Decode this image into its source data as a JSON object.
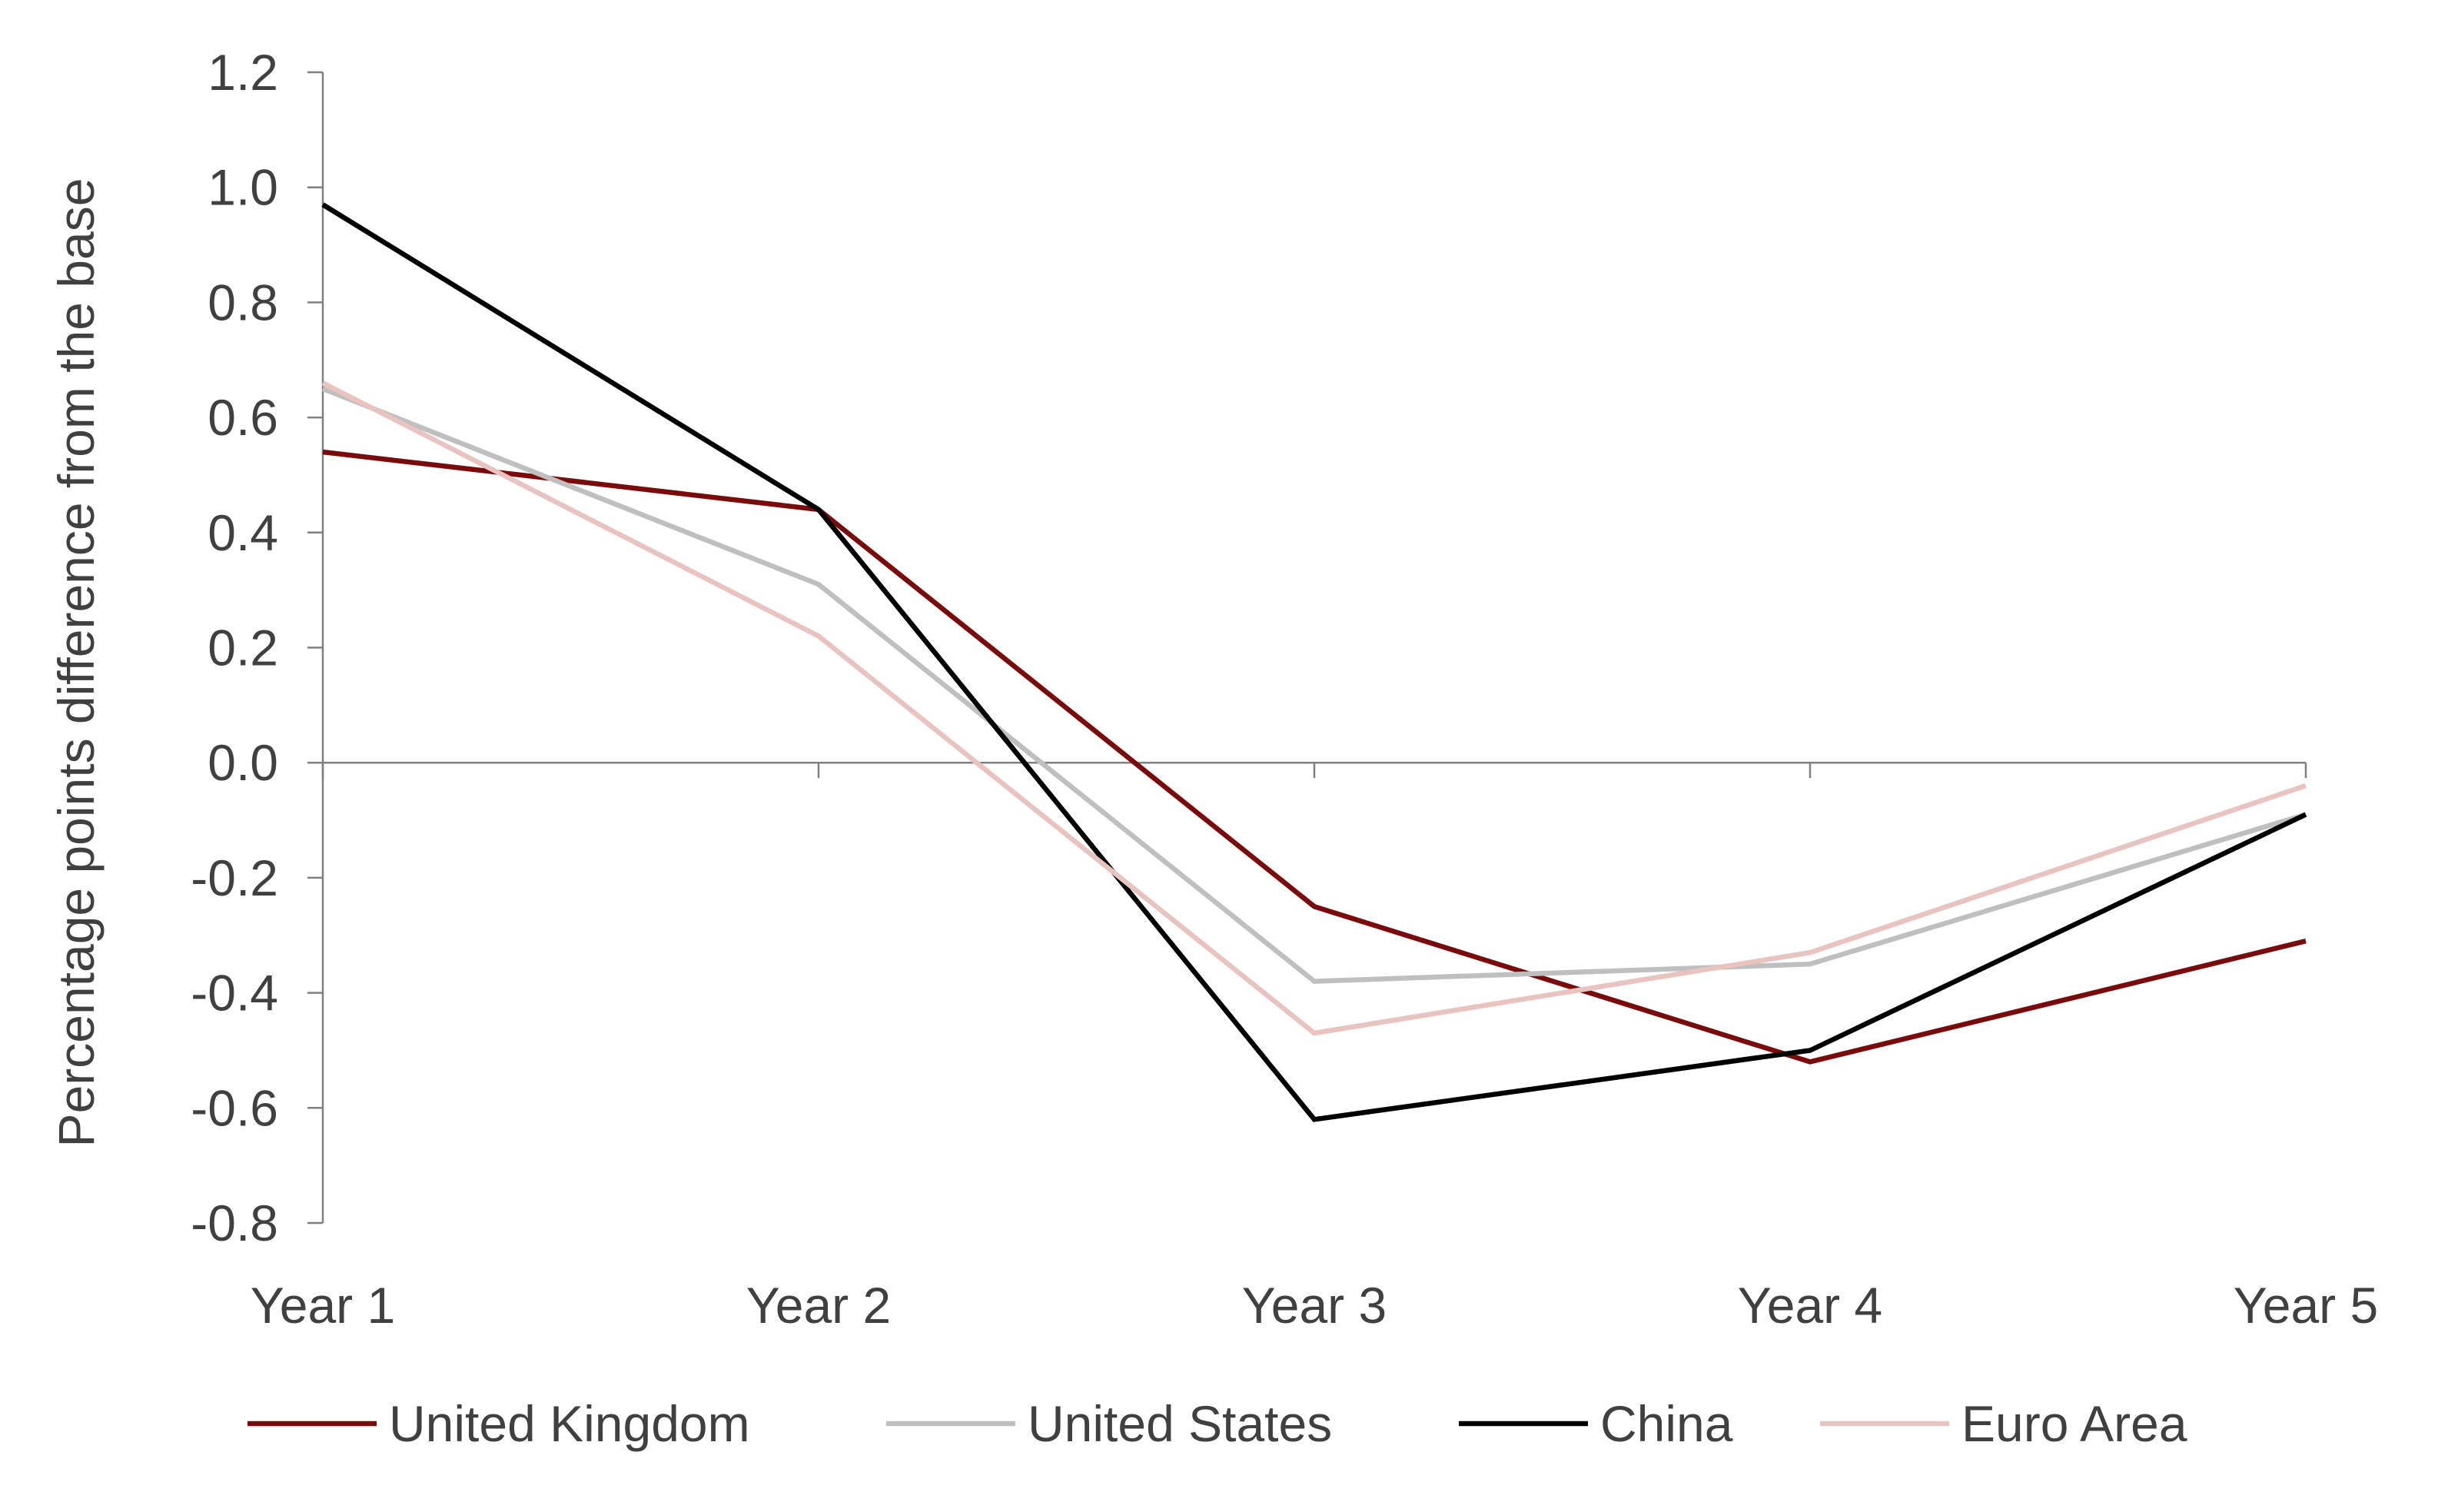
{
  "chart_data": {
    "type": "line",
    "categories": [
      "Year 1",
      "Year 2",
      "Year 3",
      "Year 4",
      "Year 5"
    ],
    "ylabel": "Percentage points difference from the base",
    "xlabel": "",
    "ylim": [
      -0.8,
      1.2
    ],
    "yticks": [
      "1.2",
      "1.0",
      "0.8",
      "0.6",
      "0.4",
      "0.2",
      "0.0",
      "-0.2",
      "-0.4",
      "-0.6",
      "-0.8"
    ],
    "grid": false,
    "legend_position": "bottom",
    "series": [
      {
        "name": "United Kingdom",
        "color": "#7b0a0a",
        "values": [
          0.54,
          0.44,
          -0.25,
          -0.52,
          -0.31
        ]
      },
      {
        "name": "United States",
        "color": "#bfbfbf",
        "values": [
          0.65,
          0.31,
          -0.38,
          -0.35,
          -0.09
        ]
      },
      {
        "name": "China",
        "color": "#000000",
        "values": [
          0.97,
          0.44,
          -0.62,
          -0.5,
          -0.09
        ]
      },
      {
        "name": "Euro Area",
        "color": "#e8c3bf",
        "values": [
          0.66,
          0.22,
          -0.47,
          -0.33,
          -0.04
        ]
      }
    ]
  }
}
